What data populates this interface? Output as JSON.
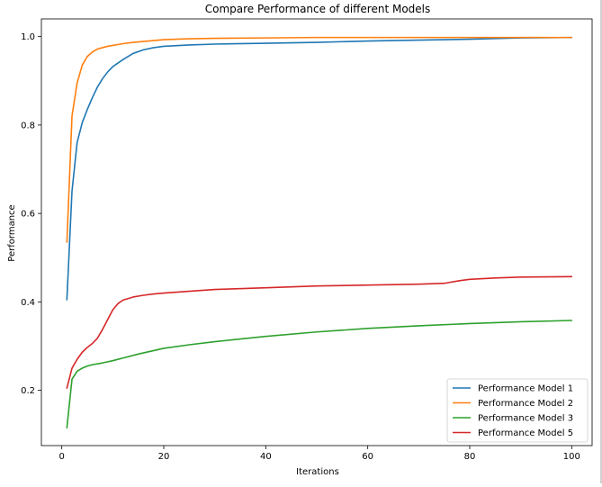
{
  "chart_data": {
    "type": "line",
    "title": "Compare Performance of different Models",
    "xlabel": "Iterations",
    "ylabel": "Performance",
    "xlim": [
      -4,
      104
    ],
    "ylim": [
      0.075,
      1.04
    ],
    "x_ticks": [
      0,
      20,
      40,
      60,
      80,
      100
    ],
    "y_ticks": [
      0.2,
      0.4,
      0.6,
      0.8,
      1.0
    ],
    "x_tick_labels": [
      "0",
      "20",
      "40",
      "60",
      "80",
      "100"
    ],
    "y_tick_labels": [
      "0.2",
      "0.4",
      "0.6",
      "0.8",
      "1.0"
    ],
    "grid": false,
    "legend_position": "lower-right",
    "series": [
      {
        "name": "Performance Model 1",
        "color": "#1f77b4",
        "points": [
          [
            1,
            0.405
          ],
          [
            2,
            0.65
          ],
          [
            3,
            0.76
          ],
          [
            4,
            0.805
          ],
          [
            5,
            0.835
          ],
          [
            6,
            0.862
          ],
          [
            7,
            0.886
          ],
          [
            8,
            0.905
          ],
          [
            9,
            0.92
          ],
          [
            10,
            0.932
          ],
          [
            12,
            0.948
          ],
          [
            14,
            0.962
          ],
          [
            16,
            0.97
          ],
          [
            18,
            0.975
          ],
          [
            20,
            0.978
          ],
          [
            25,
            0.981
          ],
          [
            30,
            0.983
          ],
          [
            40,
            0.985
          ],
          [
            50,
            0.987
          ],
          [
            60,
            0.99
          ],
          [
            70,
            0.992
          ],
          [
            80,
            0.994
          ],
          [
            90,
            0.997
          ],
          [
            100,
            0.998
          ]
        ]
      },
      {
        "name": "Performance Model 2",
        "color": "#ff7f0e",
        "points": [
          [
            1,
            0.535
          ],
          [
            2,
            0.82
          ],
          [
            3,
            0.895
          ],
          [
            4,
            0.935
          ],
          [
            5,
            0.955
          ],
          [
            6,
            0.965
          ],
          [
            7,
            0.972
          ],
          [
            8,
            0.975
          ],
          [
            9,
            0.978
          ],
          [
            10,
            0.98
          ],
          [
            12,
            0.984
          ],
          [
            14,
            0.987
          ],
          [
            16,
            0.989
          ],
          [
            18,
            0.991
          ],
          [
            20,
            0.993
          ],
          [
            25,
            0.995
          ],
          [
            30,
            0.996
          ],
          [
            40,
            0.997
          ],
          [
            50,
            0.998
          ],
          [
            60,
            0.998
          ],
          [
            70,
            0.998
          ],
          [
            80,
            0.998
          ],
          [
            90,
            0.998
          ],
          [
            100,
            0.998
          ]
        ]
      },
      {
        "name": "Performance Model 3",
        "color": "#2ca02c",
        "points": [
          [
            1,
            0.115
          ],
          [
            2,
            0.225
          ],
          [
            3,
            0.243
          ],
          [
            4,
            0.25
          ],
          [
            5,
            0.255
          ],
          [
            6,
            0.258
          ],
          [
            8,
            0.262
          ],
          [
            10,
            0.267
          ],
          [
            12,
            0.273
          ],
          [
            15,
            0.282
          ],
          [
            20,
            0.295
          ],
          [
            25,
            0.303
          ],
          [
            30,
            0.31
          ],
          [
            40,
            0.322
          ],
          [
            50,
            0.332
          ],
          [
            60,
            0.34
          ],
          [
            70,
            0.346
          ],
          [
            80,
            0.351
          ],
          [
            90,
            0.355
          ],
          [
            100,
            0.358
          ]
        ]
      },
      {
        "name": "Performance Model 5",
        "color": "#d62728",
        "points": [
          [
            1,
            0.205
          ],
          [
            2,
            0.25
          ],
          [
            3,
            0.27
          ],
          [
            4,
            0.286
          ],
          [
            5,
            0.297
          ],
          [
            6,
            0.306
          ],
          [
            7,
            0.318
          ],
          [
            8,
            0.338
          ],
          [
            9,
            0.36
          ],
          [
            10,
            0.382
          ],
          [
            11,
            0.396
          ],
          [
            12,
            0.404
          ],
          [
            14,
            0.411
          ],
          [
            16,
            0.415
          ],
          [
            18,
            0.418
          ],
          [
            20,
            0.42
          ],
          [
            25,
            0.424
          ],
          [
            30,
            0.428
          ],
          [
            40,
            0.432
          ],
          [
            50,
            0.436
          ],
          [
            60,
            0.438
          ],
          [
            70,
            0.44
          ],
          [
            75,
            0.442
          ],
          [
            78,
            0.448
          ],
          [
            80,
            0.451
          ],
          [
            85,
            0.454
          ],
          [
            90,
            0.456
          ],
          [
            100,
            0.457
          ]
        ]
      }
    ]
  }
}
